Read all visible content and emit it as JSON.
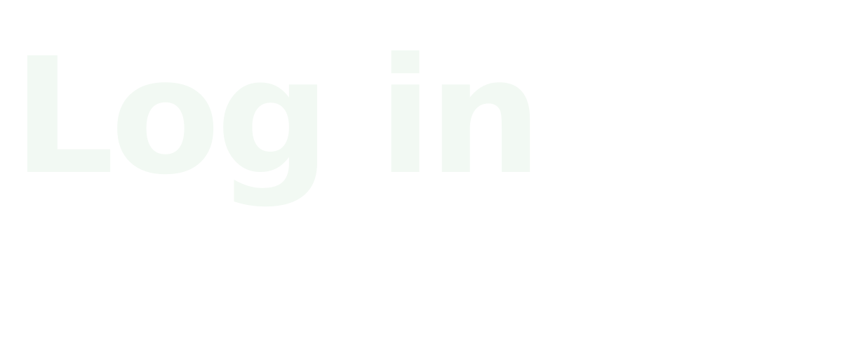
{
  "heading": {
    "text": "Log in",
    "color": "#f2f9f3"
  },
  "background_color": "#ffffff"
}
